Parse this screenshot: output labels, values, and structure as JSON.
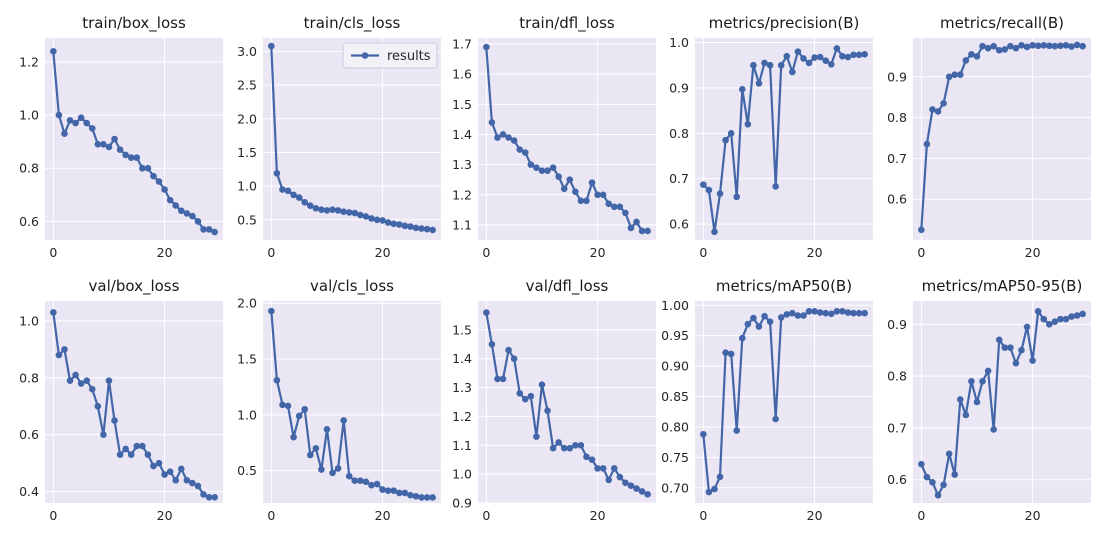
{
  "colors": {
    "series": "#4266a8",
    "axes_background": "#eae6f4",
    "grid": "#ffffff"
  },
  "chart_data": [
    {
      "type": "line",
      "title": "train/box_loss",
      "xlabel": "",
      "ylabel": "",
      "grid": true,
      "xlim": [
        -1.5,
        30.5
      ],
      "ylim": [
        0.53,
        1.29
      ],
      "xticks": [
        0,
        20
      ],
      "xtick_labels": [
        "0",
        "20"
      ],
      "yticks": [
        0.6,
        0.8,
        1.0,
        1.2
      ],
      "ytick_labels": [
        "0.6",
        "0.8",
        "1.0",
        "1.2"
      ],
      "series": [
        {
          "x": [
            0,
            1,
            2,
            3,
            4,
            5,
            6,
            7,
            8,
            9,
            10,
            11,
            12,
            13,
            14,
            15,
            16,
            17,
            18,
            19,
            20,
            21,
            22,
            23,
            24,
            25,
            26,
            27,
            28,
            29
          ],
          "y": [
            1.24,
            1.0,
            0.93,
            0.98,
            0.97,
            0.99,
            0.97,
            0.95,
            0.89,
            0.89,
            0.88,
            0.91,
            0.87,
            0.85,
            0.84,
            0.84,
            0.8,
            0.8,
            0.77,
            0.75,
            0.72,
            0.68,
            0.66,
            0.64,
            0.63,
            0.62,
            0.6,
            0.57,
            0.57,
            0.56
          ]
        }
      ]
    },
    {
      "type": "line",
      "title": "train/cls_loss",
      "xlabel": "",
      "ylabel": "",
      "grid": true,
      "legend": {
        "position": "top-right",
        "entries": [
          "results"
        ]
      },
      "xlim": [
        -1.5,
        30.5
      ],
      "ylim": [
        0.2,
        3.2
      ],
      "xticks": [
        0,
        20
      ],
      "xtick_labels": [
        "0",
        "20"
      ],
      "yticks": [
        0.5,
        1.0,
        1.5,
        2.0,
        2.5,
        3.0
      ],
      "ytick_labels": [
        "0.5",
        "1.0",
        "1.5",
        "2.0",
        "2.5",
        "3.0"
      ],
      "series": [
        {
          "name": "results",
          "x": [
            0,
            1,
            2,
            3,
            4,
            5,
            6,
            7,
            8,
            9,
            10,
            11,
            12,
            13,
            14,
            15,
            16,
            17,
            18,
            19,
            20,
            21,
            22,
            23,
            24,
            25,
            26,
            27,
            28,
            29
          ],
          "y": [
            3.08,
            1.19,
            0.95,
            0.93,
            0.87,
            0.83,
            0.76,
            0.71,
            0.67,
            0.65,
            0.64,
            0.65,
            0.64,
            0.62,
            0.61,
            0.6,
            0.57,
            0.55,
            0.52,
            0.5,
            0.49,
            0.46,
            0.44,
            0.43,
            0.41,
            0.4,
            0.38,
            0.37,
            0.36,
            0.35
          ]
        }
      ]
    },
    {
      "type": "line",
      "title": "train/dfl_loss",
      "xlabel": "",
      "ylabel": "",
      "grid": true,
      "xlim": [
        -1.5,
        30.5
      ],
      "ylim": [
        1.05,
        1.72
      ],
      "xticks": [
        0,
        20
      ],
      "xtick_labels": [
        "0",
        "20"
      ],
      "yticks": [
        1.1,
        1.2,
        1.3,
        1.4,
        1.5,
        1.6,
        1.7
      ],
      "ytick_labels": [
        "1.1",
        "1.2",
        "1.3",
        "1.4",
        "1.5",
        "1.6",
        "1.7"
      ],
      "series": [
        {
          "x": [
            0,
            1,
            2,
            3,
            4,
            5,
            6,
            7,
            8,
            9,
            10,
            11,
            12,
            13,
            14,
            15,
            16,
            17,
            18,
            19,
            20,
            21,
            22,
            23,
            24,
            25,
            26,
            27,
            28,
            29
          ],
          "y": [
            1.69,
            1.44,
            1.39,
            1.4,
            1.39,
            1.38,
            1.35,
            1.34,
            1.3,
            1.29,
            1.28,
            1.28,
            1.29,
            1.26,
            1.22,
            1.25,
            1.21,
            1.18,
            1.18,
            1.24,
            1.2,
            1.2,
            1.17,
            1.16,
            1.16,
            1.14,
            1.09,
            1.11,
            1.08,
            1.08
          ]
        }
      ]
    },
    {
      "type": "line",
      "title": "metrics/precision(B)",
      "xlabel": "",
      "ylabel": "",
      "grid": true,
      "xlim": [
        -1.5,
        30.5
      ],
      "ylim": [
        0.565,
        1.01
      ],
      "xticks": [
        0,
        20
      ],
      "xtick_labels": [
        "0",
        "20"
      ],
      "yticks": [
        0.6,
        0.7,
        0.8,
        0.9,
        1.0
      ],
      "ytick_labels": [
        "0.6",
        "0.7",
        "0.8",
        "0.9",
        "1.0"
      ],
      "series": [
        {
          "x": [
            0,
            1,
            2,
            3,
            4,
            5,
            6,
            7,
            8,
            9,
            10,
            11,
            12,
            13,
            14,
            15,
            16,
            17,
            18,
            19,
            20,
            21,
            22,
            23,
            24,
            25,
            26,
            27,
            28,
            29
          ],
          "y": [
            0.687,
            0.675,
            0.583,
            0.667,
            0.785,
            0.8,
            0.66,
            0.897,
            0.82,
            0.95,
            0.91,
            0.955,
            0.95,
            0.683,
            0.95,
            0.97,
            0.935,
            0.98,
            0.965,
            0.955,
            0.967,
            0.968,
            0.96,
            0.952,
            0.987,
            0.97,
            0.968,
            0.973,
            0.973,
            0.974
          ]
        }
      ]
    },
    {
      "type": "line",
      "title": "metrics/recall(B)",
      "xlabel": "",
      "ylabel": "",
      "grid": true,
      "xlim": [
        -1.5,
        30.5
      ],
      "ylim": [
        0.5,
        0.995
      ],
      "xticks": [
        0,
        20
      ],
      "xtick_labels": [
        "0",
        "20"
      ],
      "yticks": [
        0.6,
        0.7,
        0.8,
        0.9
      ],
      "ytick_labels": [
        "0.6",
        "0.7",
        "0.8",
        "0.9"
      ],
      "series": [
        {
          "x": [
            0,
            1,
            2,
            3,
            4,
            5,
            6,
            7,
            8,
            9,
            10,
            11,
            12,
            13,
            14,
            15,
            16,
            17,
            18,
            19,
            20,
            21,
            22,
            23,
            24,
            25,
            26,
            27,
            28,
            29
          ],
          "y": [
            0.525,
            0.735,
            0.82,
            0.815,
            0.835,
            0.9,
            0.905,
            0.905,
            0.94,
            0.955,
            0.95,
            0.975,
            0.97,
            0.975,
            0.965,
            0.967,
            0.975,
            0.97,
            0.977,
            0.973,
            0.977,
            0.976,
            0.977,
            0.976,
            0.975,
            0.976,
            0.977,
            0.974,
            0.978,
            0.975
          ]
        }
      ]
    },
    {
      "type": "line",
      "title": "val/box_loss",
      "xlabel": "",
      "ylabel": "",
      "grid": true,
      "xlim": [
        -1.5,
        30.5
      ],
      "ylim": [
        0.36,
        1.07
      ],
      "xticks": [
        0,
        20
      ],
      "xtick_labels": [
        "0",
        "20"
      ],
      "yticks": [
        0.4,
        0.6,
        0.8,
        1.0
      ],
      "ytick_labels": [
        "0.4",
        "0.6",
        "0.8",
        "1.0"
      ],
      "series": [
        {
          "x": [
            0,
            1,
            2,
            3,
            4,
            5,
            6,
            7,
            8,
            9,
            10,
            11,
            12,
            13,
            14,
            15,
            16,
            17,
            18,
            19,
            20,
            21,
            22,
            23,
            24,
            25,
            26,
            27,
            28,
            29
          ],
          "y": [
            1.03,
            0.88,
            0.9,
            0.79,
            0.81,
            0.78,
            0.79,
            0.76,
            0.7,
            0.6,
            0.79,
            0.65,
            0.53,
            0.55,
            0.53,
            0.56,
            0.56,
            0.53,
            0.49,
            0.5,
            0.46,
            0.47,
            0.44,
            0.48,
            0.44,
            0.43,
            0.42,
            0.39,
            0.38,
            0.38
          ]
        }
      ]
    },
    {
      "type": "line",
      "title": "val/cls_loss",
      "xlabel": "",
      "ylabel": "",
      "grid": true,
      "xlim": [
        -1.5,
        30.5
      ],
      "ylim": [
        0.21,
        2.02
      ],
      "xticks": [
        0,
        20
      ],
      "xtick_labels": [
        "0",
        "20"
      ],
      "yticks": [
        0.5,
        1.0,
        1.5,
        2.0
      ],
      "ytick_labels": [
        "0.5",
        "1.0",
        "1.5",
        "2.0"
      ],
      "series": [
        {
          "x": [
            0,
            1,
            2,
            3,
            4,
            5,
            6,
            7,
            8,
            9,
            10,
            11,
            12,
            13,
            14,
            15,
            16,
            17,
            18,
            19,
            20,
            21,
            22,
            23,
            24,
            25,
            26,
            27,
            28,
            29
          ],
          "y": [
            1.93,
            1.31,
            1.09,
            1.08,
            0.8,
            0.99,
            1.05,
            0.64,
            0.7,
            0.51,
            0.87,
            0.48,
            0.52,
            0.95,
            0.45,
            0.41,
            0.41,
            0.4,
            0.37,
            0.38,
            0.33,
            0.32,
            0.32,
            0.3,
            0.3,
            0.28,
            0.27,
            0.26,
            0.26,
            0.26
          ]
        }
      ]
    },
    {
      "type": "line",
      "title": "val/dfl_loss",
      "xlabel": "",
      "ylabel": "",
      "grid": true,
      "xlim": [
        -1.5,
        30.5
      ],
      "ylim": [
        0.9,
        1.6
      ],
      "xticks": [
        0,
        20
      ],
      "xtick_labels": [
        "0",
        "20"
      ],
      "yticks": [
        0.9,
        1.0,
        1.1,
        1.2,
        1.3,
        1.4,
        1.5
      ],
      "ytick_labels": [
        "0.9",
        "1.0",
        "1.1",
        "1.2",
        "1.3",
        "1.4",
        "1.5"
      ],
      "series": [
        {
          "x": [
            0,
            1,
            2,
            3,
            4,
            5,
            6,
            7,
            8,
            9,
            10,
            11,
            12,
            13,
            14,
            15,
            16,
            17,
            18,
            19,
            20,
            21,
            22,
            23,
            24,
            25,
            26,
            27,
            28,
            29
          ],
          "y": [
            1.56,
            1.45,
            1.33,
            1.33,
            1.43,
            1.4,
            1.28,
            1.26,
            1.27,
            1.13,
            1.31,
            1.22,
            1.09,
            1.11,
            1.09,
            1.09,
            1.1,
            1.1,
            1.06,
            1.05,
            1.02,
            1.02,
            0.98,
            1.02,
            0.99,
            0.97,
            0.96,
            0.95,
            0.94,
            0.93
          ]
        }
      ]
    },
    {
      "type": "line",
      "title": "metrics/mAP50(B)",
      "xlabel": "",
      "ylabel": "",
      "grid": true,
      "xlim": [
        -1.5,
        30.5
      ],
      "ylim": [
        0.675,
        1.007
      ],
      "xticks": [
        0,
        20
      ],
      "xtick_labels": [
        "0",
        "20"
      ],
      "yticks": [
        0.7,
        0.75,
        0.8,
        0.85,
        0.9,
        0.95,
        1.0
      ],
      "ytick_labels": [
        "0.70",
        "0.75",
        "0.80",
        "0.85",
        "0.90",
        "0.95",
        "1.00"
      ],
      "series": [
        {
          "x": [
            0,
            1,
            2,
            3,
            4,
            5,
            6,
            7,
            8,
            9,
            10,
            11,
            12,
            13,
            14,
            15,
            16,
            17,
            18,
            19,
            20,
            21,
            22,
            23,
            24,
            25,
            26,
            27,
            28,
            29
          ],
          "y": [
            0.788,
            0.693,
            0.698,
            0.718,
            0.922,
            0.92,
            0.794,
            0.946,
            0.969,
            0.979,
            0.965,
            0.982,
            0.973,
            0.813,
            0.98,
            0.985,
            0.987,
            0.983,
            0.983,
            0.99,
            0.99,
            0.988,
            0.987,
            0.986,
            0.99,
            0.99,
            0.988,
            0.987,
            0.987,
            0.987
          ]
        }
      ]
    },
    {
      "type": "line",
      "title": "metrics/mAP50-95(B)",
      "xlabel": "",
      "ylabel": "",
      "grid": true,
      "xlim": [
        -1.5,
        30.5
      ],
      "ylim": [
        0.555,
        0.945
      ],
      "xticks": [
        0,
        20
      ],
      "xtick_labels": [
        "0",
        "20"
      ],
      "yticks": [
        0.6,
        0.7,
        0.8,
        0.9
      ],
      "ytick_labels": [
        "0.6",
        "0.7",
        "0.8",
        "0.9"
      ],
      "series": [
        {
          "x": [
            0,
            1,
            2,
            3,
            4,
            5,
            6,
            7,
            8,
            9,
            10,
            11,
            12,
            13,
            14,
            15,
            16,
            17,
            18,
            19,
            20,
            21,
            22,
            23,
            24,
            25,
            26,
            27,
            28,
            29
          ],
          "y": [
            0.63,
            0.605,
            0.595,
            0.57,
            0.59,
            0.65,
            0.61,
            0.755,
            0.725,
            0.79,
            0.75,
            0.79,
            0.81,
            0.697,
            0.87,
            0.855,
            0.855,
            0.825,
            0.85,
            0.895,
            0.83,
            0.925,
            0.91,
            0.9,
            0.905,
            0.91,
            0.91,
            0.915,
            0.917,
            0.92
          ]
        }
      ]
    }
  ]
}
